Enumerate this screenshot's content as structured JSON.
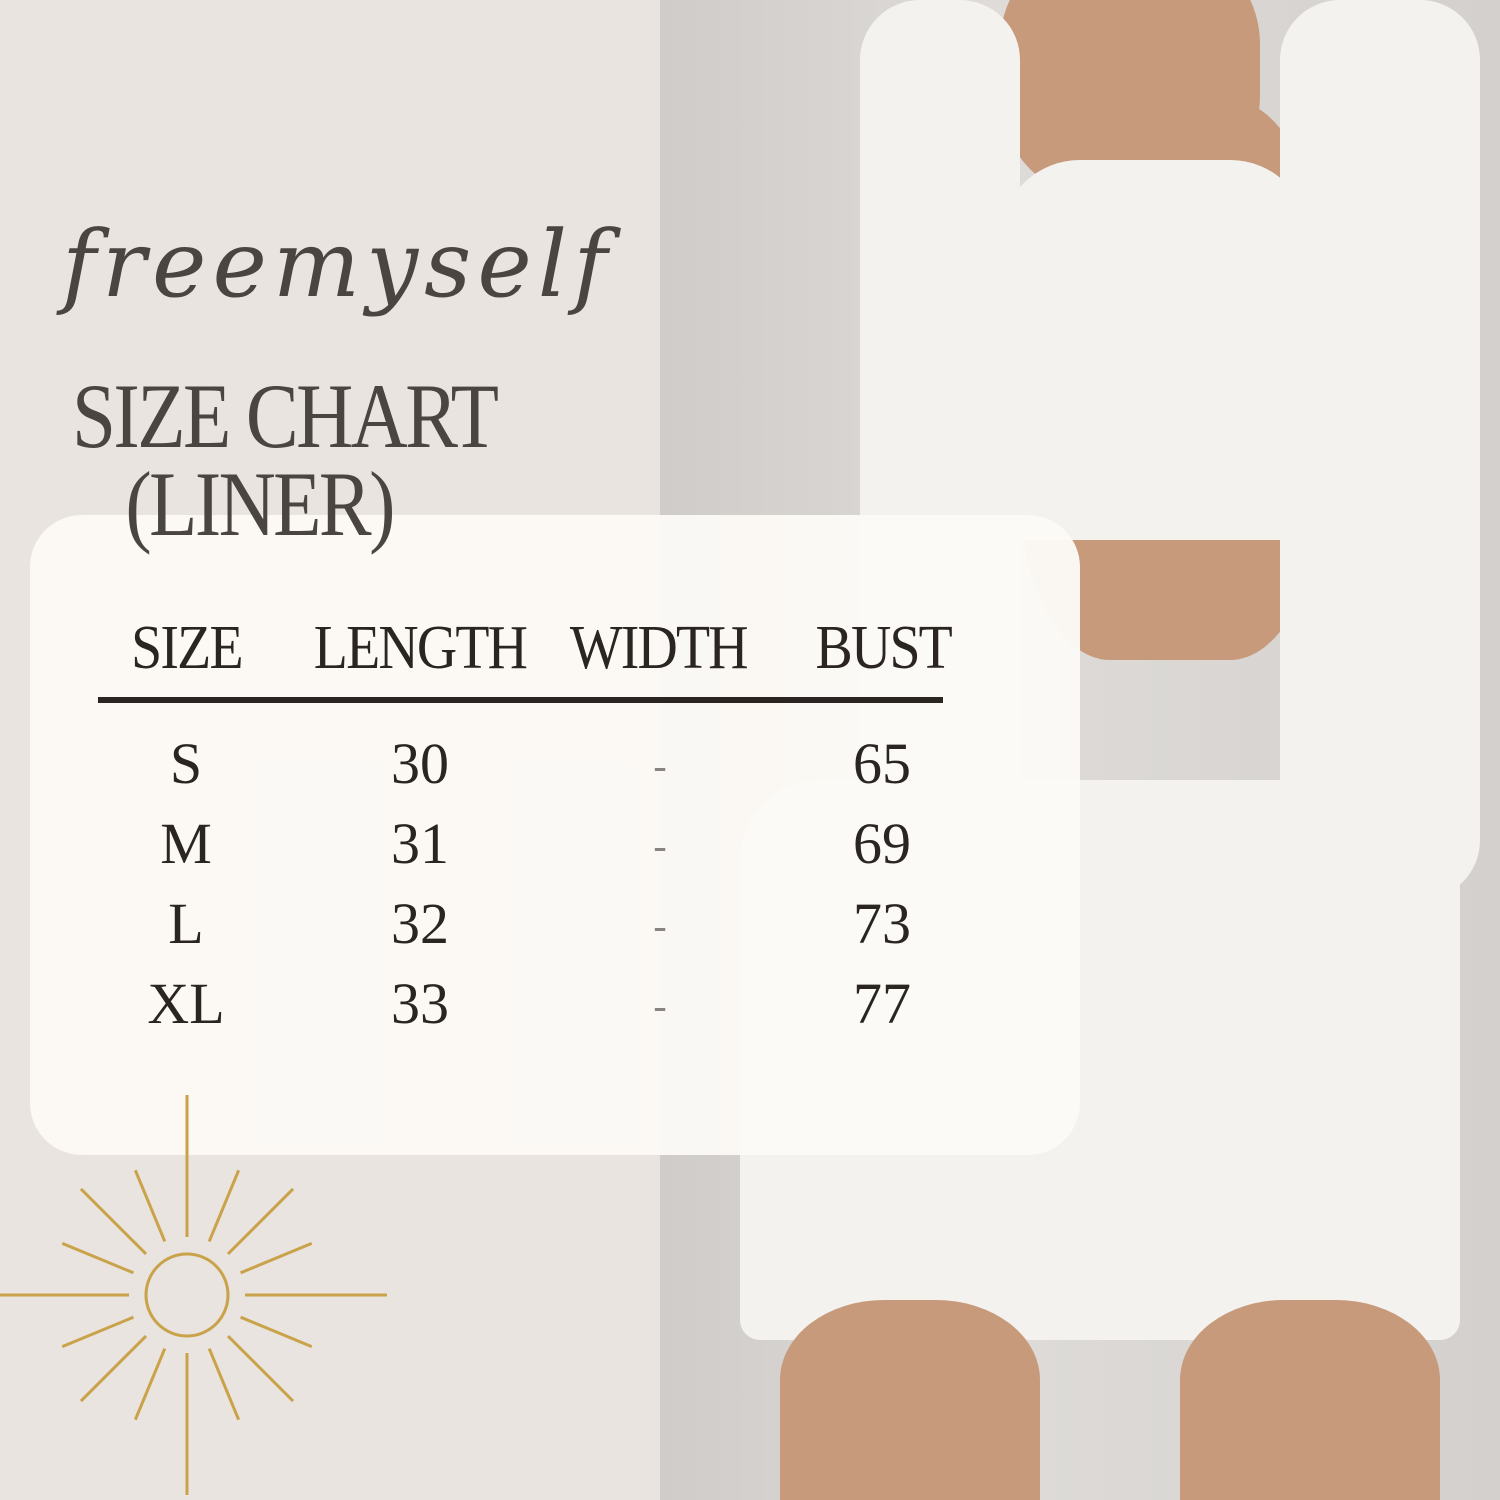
{
  "brand": "freemyself",
  "title": {
    "line1": "SIZE CHART",
    "line2": "(LINER)"
  },
  "table": {
    "headers": [
      "SIZE",
      "LENGTH",
      "WIDTH",
      "BUST"
    ],
    "rows": [
      [
        "S",
        "30",
        "-",
        "65"
      ],
      [
        "M",
        "31",
        "-",
        "69"
      ],
      [
        "L",
        "32",
        "-",
        "73"
      ],
      [
        "XL",
        "33",
        "-",
        "77"
      ]
    ]
  },
  "colors": {
    "background": "#e9e4e0",
    "card": "#fbf9f5",
    "text": "#2b2522",
    "title": "#4b4541",
    "sun": "#c9a24a"
  },
  "decor": {
    "sun_icon": "sun-icon",
    "photo": "model-photo"
  }
}
